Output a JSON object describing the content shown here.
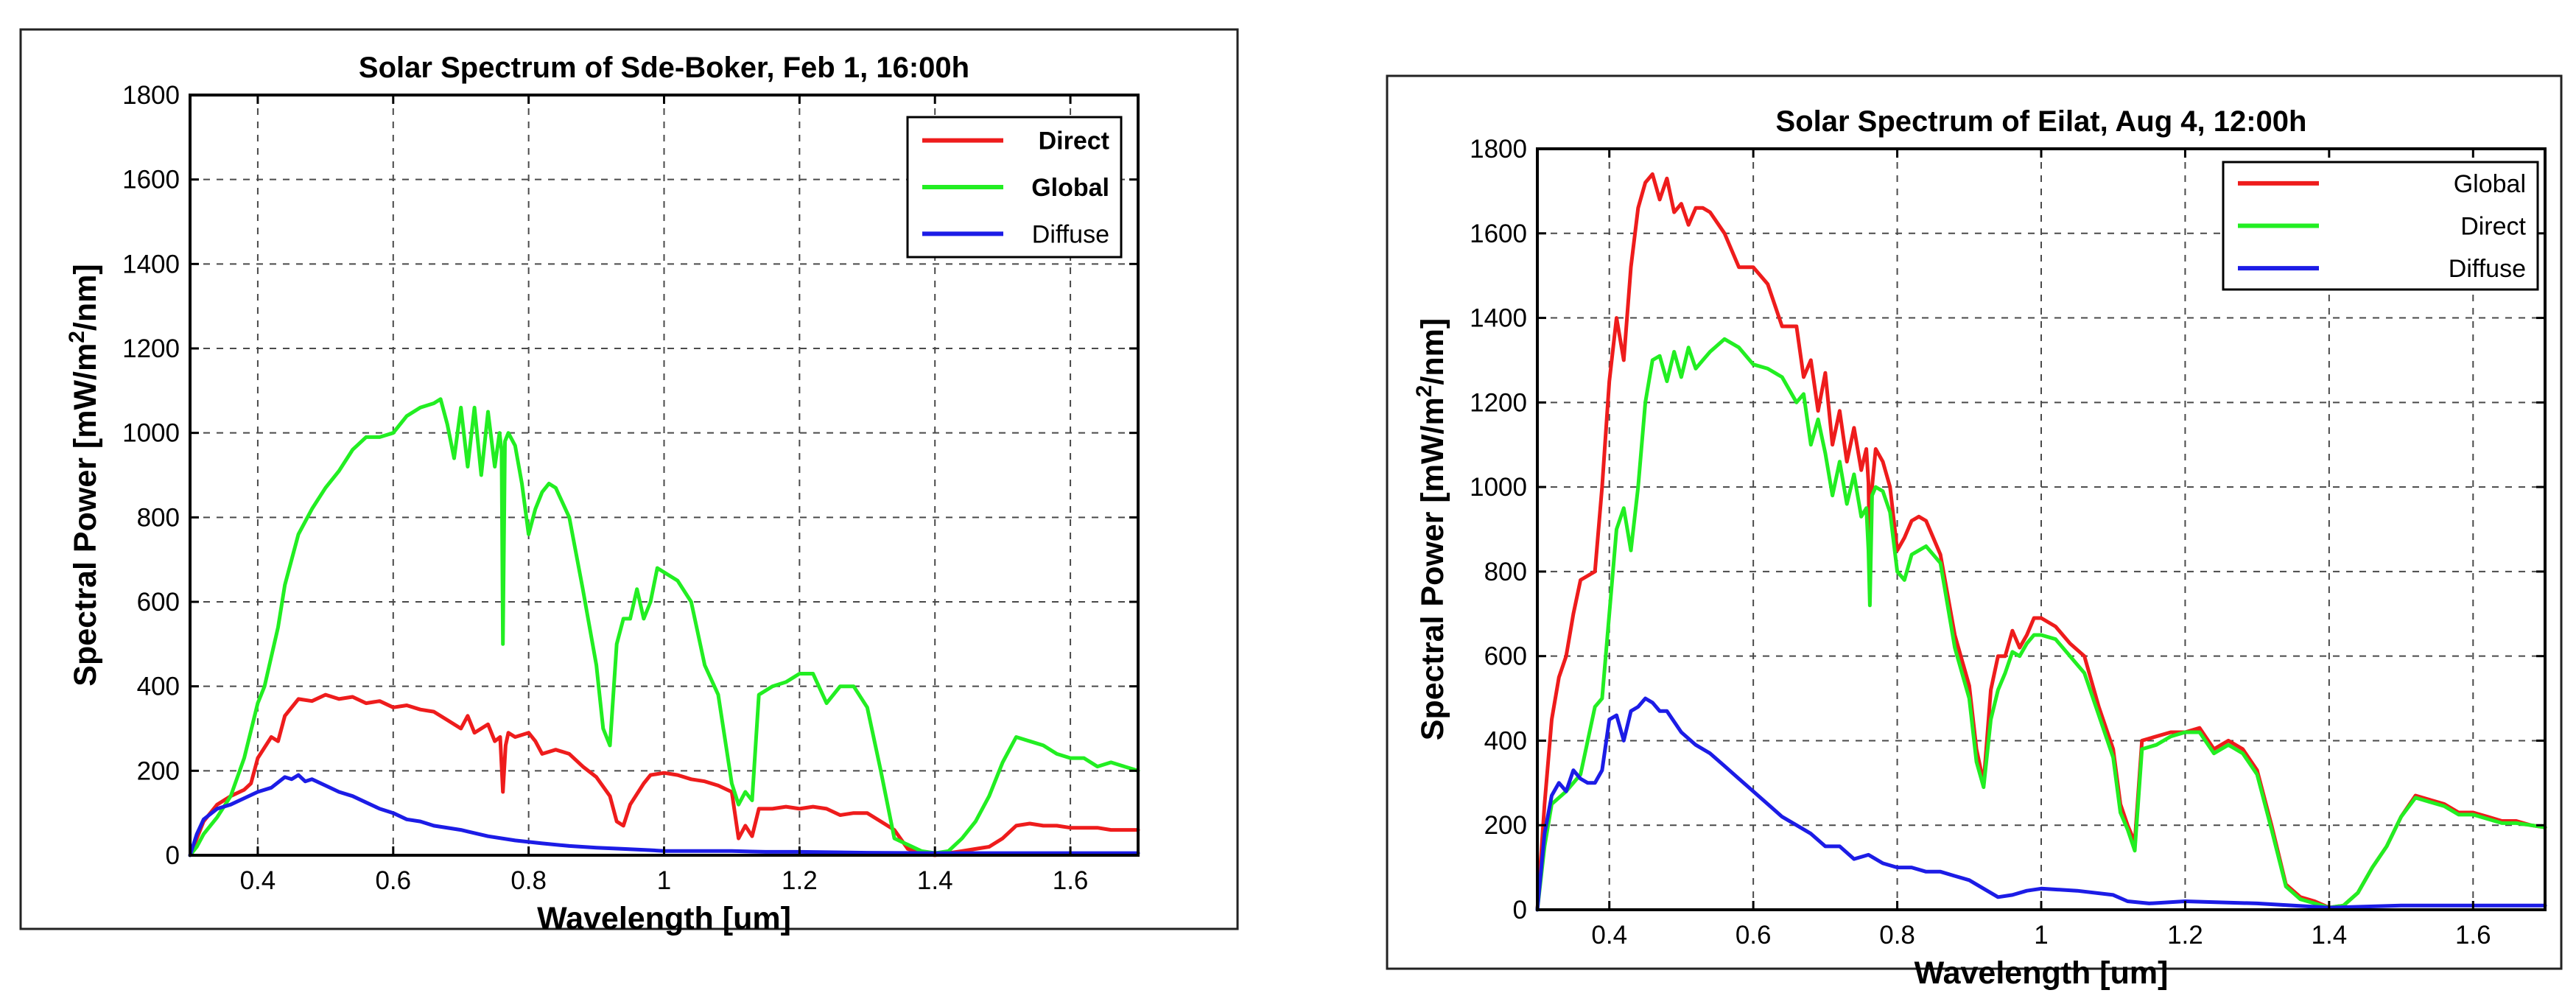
{
  "chart_data": [
    {
      "type": "line",
      "title": "Solar Spectrum of Sde-Boker, Feb 1, 16:00h",
      "xlabel": "Wavelength [um]",
      "ylabel": "Spectral Power [mW/m^2/nm]",
      "ylabel_base": "Spectral Power [mW/m",
      "ylabel_sup": "2",
      "ylabel_tail": "/nm]",
      "xlim": [
        0.3,
        1.7
      ],
      "ylim": [
        0,
        1800
      ],
      "xticks": [
        0.4,
        0.6,
        0.8,
        1.0,
        1.2,
        1.4,
        1.6
      ],
      "xtick_labels": [
        "0.4",
        "0.6",
        "0.8",
        "1",
        "1.2",
        "1.4",
        "1.6"
      ],
      "yticks": [
        0,
        200,
        400,
        600,
        800,
        1000,
        1200,
        1400,
        1600,
        1800
      ],
      "ytick_labels": [
        "0",
        "200",
        "400",
        "600",
        "800",
        "1000",
        "1200",
        "1400",
        "1600",
        "1800"
      ],
      "grid": true,
      "legend_position": "top-right",
      "series": [
        {
          "name": "Direct",
          "color": "#ee1c1c",
          "bold_label": true,
          "x": [
            0.3,
            0.31,
            0.32,
            0.34,
            0.36,
            0.38,
            0.39,
            0.4,
            0.42,
            0.43,
            0.44,
            0.46,
            0.48,
            0.5,
            0.52,
            0.54,
            0.56,
            0.58,
            0.6,
            0.62,
            0.64,
            0.66,
            0.68,
            0.7,
            0.71,
            0.72,
            0.74,
            0.75,
            0.758,
            0.762,
            0.766,
            0.77,
            0.78,
            0.8,
            0.81,
            0.82,
            0.84,
            0.86,
            0.88,
            0.9,
            0.92,
            0.93,
            0.94,
            0.95,
            0.97,
            0.98,
            1.0,
            1.02,
            1.04,
            1.06,
            1.08,
            1.1,
            1.11,
            1.12,
            1.13,
            1.14,
            1.16,
            1.18,
            1.2,
            1.22,
            1.24,
            1.26,
            1.28,
            1.3,
            1.32,
            1.34,
            1.36,
            1.38,
            1.4,
            1.42,
            1.44,
            1.46,
            1.48,
            1.5,
            1.52,
            1.54,
            1.56,
            1.58,
            1.6,
            1.62,
            1.64,
            1.66,
            1.68,
            1.7
          ],
          "y": [
            0,
            40,
            80,
            120,
            140,
            155,
            170,
            230,
            280,
            270,
            330,
            370,
            365,
            380,
            370,
            375,
            360,
            365,
            350,
            355,
            345,
            340,
            320,
            300,
            330,
            290,
            310,
            270,
            280,
            150,
            260,
            290,
            280,
            290,
            270,
            240,
            250,
            240,
            210,
            185,
            140,
            80,
            70,
            120,
            170,
            190,
            195,
            190,
            180,
            175,
            165,
            150,
            40,
            70,
            45,
            110,
            110,
            115,
            110,
            115,
            110,
            95,
            100,
            100,
            80,
            60,
            15,
            5,
            0,
            5,
            10,
            15,
            20,
            40,
            70,
            75,
            70,
            70,
            65,
            65,
            65,
            60,
            60,
            60
          ]
        },
        {
          "name": "Global",
          "color": "#22ee22",
          "bold_label": true,
          "x": [
            0.3,
            0.31,
            0.32,
            0.34,
            0.36,
            0.38,
            0.4,
            0.41,
            0.42,
            0.43,
            0.44,
            0.45,
            0.46,
            0.48,
            0.5,
            0.52,
            0.54,
            0.56,
            0.58,
            0.6,
            0.62,
            0.64,
            0.66,
            0.67,
            0.68,
            0.69,
            0.7,
            0.71,
            0.72,
            0.73,
            0.74,
            0.75,
            0.757,
            0.76,
            0.762,
            0.765,
            0.77,
            0.78,
            0.79,
            0.8,
            0.81,
            0.82,
            0.83,
            0.84,
            0.86,
            0.88,
            0.9,
            0.91,
            0.92,
            0.93,
            0.94,
            0.95,
            0.96,
            0.97,
            0.98,
            0.99,
            1.0,
            1.02,
            1.04,
            1.06,
            1.08,
            1.1,
            1.11,
            1.12,
            1.13,
            1.14,
            1.16,
            1.18,
            1.2,
            1.22,
            1.24,
            1.26,
            1.28,
            1.3,
            1.32,
            1.34,
            1.36,
            1.38,
            1.4,
            1.42,
            1.44,
            1.46,
            1.48,
            1.5,
            1.52,
            1.54,
            1.56,
            1.58,
            1.6,
            1.62,
            1.64,
            1.66,
            1.68,
            1.7
          ],
          "y": [
            0,
            20,
            50,
            90,
            140,
            230,
            360,
            400,
            470,
            540,
            640,
            700,
            760,
            820,
            870,
            910,
            960,
            990,
            990,
            1000,
            1040,
            1060,
            1070,
            1080,
            1020,
            940,
            1060,
            920,
            1060,
            900,
            1050,
            920,
            1000,
            960,
            500,
            980,
            1000,
            970,
            880,
            760,
            820,
            860,
            880,
            870,
            800,
            630,
            450,
            300,
            260,
            500,
            560,
            560,
            630,
            560,
            600,
            680,
            670,
            650,
            600,
            450,
            380,
            170,
            120,
            150,
            130,
            380,
            400,
            410,
            430,
            430,
            360,
            400,
            400,
            350,
            200,
            40,
            25,
            10,
            5,
            10,
            40,
            80,
            140,
            220,
            280,
            270,
            260,
            240,
            230,
            230,
            210,
            220,
            210,
            200
          ]
        },
        {
          "name": "Diffuse",
          "color": "#1c1ce6",
          "bold_label": false,
          "x": [
            0.3,
            0.31,
            0.32,
            0.34,
            0.36,
            0.38,
            0.4,
            0.42,
            0.44,
            0.45,
            0.46,
            0.47,
            0.48,
            0.5,
            0.52,
            0.54,
            0.56,
            0.58,
            0.6,
            0.62,
            0.64,
            0.66,
            0.7,
            0.74,
            0.78,
            0.82,
            0.86,
            0.9,
            0.94,
            0.98,
            1.0,
            1.05,
            1.1,
            1.15,
            1.2,
            1.3,
            1.4,
            1.5,
            1.6,
            1.7
          ],
          "y": [
            0,
            50,
            85,
            110,
            120,
            135,
            150,
            160,
            185,
            180,
            190,
            175,
            180,
            165,
            150,
            140,
            125,
            110,
            100,
            85,
            80,
            70,
            60,
            45,
            35,
            28,
            22,
            18,
            15,
            12,
            10,
            10,
            10,
            8,
            8,
            6,
            5,
            5,
            5,
            5
          ]
        }
      ]
    },
    {
      "type": "line",
      "title": "Solar Spectrum of Eilat, Aug 4, 12:00h",
      "xlabel": "Wavelength [um]",
      "ylabel": "Spectral Power [mW/m^2/nm]",
      "ylabel_base": "Spectral Power [mW/m",
      "ylabel_sup": "2",
      "ylabel_tail": "/nm]",
      "xlim": [
        0.3,
        1.7
      ],
      "ylim": [
        0,
        1800
      ],
      "xticks": [
        0.4,
        0.6,
        0.8,
        1.0,
        1.2,
        1.4,
        1.6
      ],
      "xtick_labels": [
        "0.4",
        "0.6",
        "0.8",
        "1",
        "1.2",
        "1.4",
        "1.6"
      ],
      "yticks": [
        0,
        200,
        400,
        600,
        800,
        1000,
        1200,
        1400,
        1600,
        1800
      ],
      "ytick_labels": [
        "0",
        "200",
        "400",
        "600",
        "800",
        "1000",
        "1200",
        "1400",
        "1600",
        "1800"
      ],
      "grid": true,
      "legend_position": "top-right",
      "series": [
        {
          "name": "Global",
          "color": "#ee1c1c",
          "bold_label": false,
          "x": [
            0.3,
            0.31,
            0.32,
            0.33,
            0.34,
            0.35,
            0.36,
            0.37,
            0.38,
            0.39,
            0.4,
            0.41,
            0.42,
            0.43,
            0.44,
            0.45,
            0.46,
            0.47,
            0.48,
            0.49,
            0.5,
            0.51,
            0.52,
            0.53,
            0.54,
            0.56,
            0.58,
            0.6,
            0.62,
            0.64,
            0.66,
            0.67,
            0.68,
            0.69,
            0.7,
            0.71,
            0.72,
            0.73,
            0.74,
            0.75,
            0.757,
            0.76,
            0.762,
            0.765,
            0.77,
            0.78,
            0.79,
            0.8,
            0.81,
            0.82,
            0.83,
            0.84,
            0.86,
            0.88,
            0.9,
            0.91,
            0.92,
            0.93,
            0.94,
            0.95,
            0.96,
            0.97,
            0.98,
            0.99,
            1.0,
            1.02,
            1.04,
            1.06,
            1.08,
            1.1,
            1.11,
            1.12,
            1.13,
            1.14,
            1.16,
            1.18,
            1.2,
            1.22,
            1.24,
            1.26,
            1.28,
            1.3,
            1.32,
            1.34,
            1.36,
            1.38,
            1.4,
            1.42,
            1.44,
            1.46,
            1.48,
            1.5,
            1.52,
            1.54,
            1.56,
            1.58,
            1.6,
            1.62,
            1.64,
            1.66,
            1.68,
            1.7
          ],
          "y": [
            0,
            250,
            450,
            550,
            600,
            700,
            780,
            790,
            800,
            1000,
            1250,
            1400,
            1300,
            1520,
            1660,
            1720,
            1740,
            1680,
            1730,
            1650,
            1670,
            1620,
            1660,
            1660,
            1650,
            1600,
            1520,
            1520,
            1480,
            1380,
            1380,
            1260,
            1300,
            1180,
            1270,
            1100,
            1180,
            1060,
            1140,
            1040,
            1090,
            1010,
            800,
            1000,
            1090,
            1060,
            1000,
            850,
            880,
            920,
            930,
            920,
            840,
            650,
            530,
            380,
            300,
            520,
            600,
            600,
            660,
            620,
            650,
            690,
            690,
            670,
            630,
            600,
            480,
            380,
            250,
            200,
            160,
            400,
            410,
            420,
            420,
            430,
            380,
            400,
            380,
            330,
            200,
            60,
            30,
            20,
            5,
            10,
            40,
            100,
            150,
            220,
            270,
            260,
            250,
            230,
            230,
            220,
            210,
            210,
            200,
            195
          ]
        },
        {
          "name": "Direct",
          "color": "#22ee22",
          "bold_label": false,
          "x": [
            0.3,
            0.31,
            0.32,
            0.34,
            0.36,
            0.38,
            0.39,
            0.4,
            0.41,
            0.42,
            0.43,
            0.44,
            0.45,
            0.46,
            0.47,
            0.48,
            0.49,
            0.5,
            0.51,
            0.52,
            0.53,
            0.54,
            0.56,
            0.58,
            0.6,
            0.62,
            0.64,
            0.66,
            0.67,
            0.68,
            0.69,
            0.7,
            0.71,
            0.72,
            0.73,
            0.74,
            0.75,
            0.757,
            0.76,
            0.762,
            0.765,
            0.77,
            0.78,
            0.79,
            0.8,
            0.81,
            0.82,
            0.83,
            0.84,
            0.86,
            0.88,
            0.9,
            0.91,
            0.92,
            0.93,
            0.94,
            0.95,
            0.96,
            0.97,
            0.98,
            0.99,
            1.0,
            1.02,
            1.04,
            1.06,
            1.08,
            1.1,
            1.11,
            1.12,
            1.13,
            1.14,
            1.16,
            1.18,
            1.2,
            1.22,
            1.24,
            1.26,
            1.28,
            1.3,
            1.32,
            1.34,
            1.36,
            1.38,
            1.4,
            1.42,
            1.44,
            1.46,
            1.48,
            1.5,
            1.52,
            1.54,
            1.56,
            1.58,
            1.6,
            1.62,
            1.64,
            1.66,
            1.68,
            1.7
          ],
          "y": [
            0,
            150,
            250,
            280,
            320,
            480,
            500,
            700,
            900,
            950,
            850,
            1000,
            1200,
            1300,
            1310,
            1250,
            1320,
            1260,
            1330,
            1280,
            1300,
            1320,
            1350,
            1330,
            1290,
            1280,
            1260,
            1200,
            1220,
            1100,
            1160,
            1080,
            980,
            1060,
            960,
            1030,
            930,
            950,
            850,
            720,
            980,
            1000,
            990,
            940,
            800,
            780,
            840,
            850,
            860,
            820,
            620,
            500,
            350,
            290,
            450,
            520,
            560,
            610,
            600,
            630,
            650,
            650,
            640,
            600,
            560,
            460,
            360,
            230,
            190,
            140,
            380,
            390,
            410,
            420,
            420,
            370,
            390,
            370,
            320,
            190,
            55,
            25,
            15,
            5,
            10,
            40,
            100,
            150,
            220,
            265,
            255,
            245,
            225,
            225,
            215,
            205,
            205,
            200,
            195
          ]
        },
        {
          "name": "Diffuse",
          "color": "#1c1ce6",
          "bold_label": false,
          "x": [
            0.3,
            0.31,
            0.32,
            0.33,
            0.34,
            0.35,
            0.36,
            0.37,
            0.38,
            0.39,
            0.4,
            0.41,
            0.42,
            0.43,
            0.44,
            0.45,
            0.46,
            0.47,
            0.48,
            0.5,
            0.52,
            0.54,
            0.56,
            0.58,
            0.6,
            0.62,
            0.64,
            0.66,
            0.68,
            0.7,
            0.72,
            0.74,
            0.76,
            0.78,
            0.8,
            0.82,
            0.84,
            0.86,
            0.88,
            0.9,
            0.92,
            0.94,
            0.96,
            0.98,
            1.0,
            1.05,
            1.1,
            1.12,
            1.15,
            1.2,
            1.3,
            1.4,
            1.5,
            1.6,
            1.7
          ],
          "y": [
            0,
            180,
            270,
            300,
            280,
            330,
            310,
            300,
            300,
            330,
            450,
            460,
            400,
            470,
            480,
            500,
            490,
            470,
            470,
            420,
            390,
            370,
            340,
            310,
            280,
            250,
            220,
            200,
            180,
            150,
            150,
            120,
            130,
            110,
            100,
            100,
            90,
            90,
            80,
            70,
            50,
            30,
            35,
            45,
            50,
            45,
            35,
            20,
            15,
            20,
            15,
            5,
            10,
            10,
            10
          ]
        }
      ]
    }
  ]
}
